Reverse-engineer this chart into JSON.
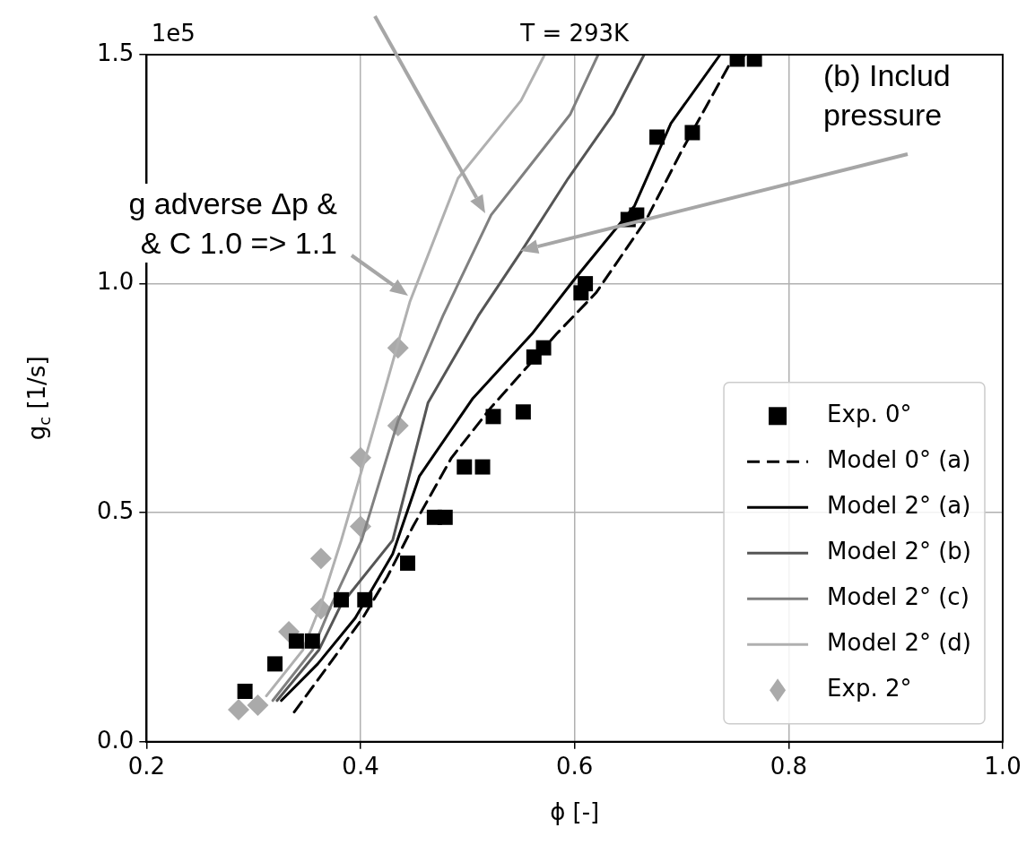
{
  "chart_data": {
    "type": "line",
    "title": "T = 293K",
    "xlabel": "ϕ [-]",
    "ylabel": "g$_{c}$ [1/s]",
    "xlim": [
      0.2,
      1.0
    ],
    "ylim": [
      0,
      1.5
    ],
    "xticks": [
      {
        "value": 0.2,
        "label": "0.2"
      },
      {
        "value": 0.4,
        "label": "0.4"
      },
      {
        "value": 0.6,
        "label": "0.6"
      },
      {
        "value": 0.8,
        "label": "0.8"
      },
      {
        "value": 1.0,
        "label": "1.0"
      }
    ],
    "yticks": [
      {
        "value": 0,
        "label": "0.0"
      },
      {
        "value": 0.5,
        "label": "0.5"
      },
      {
        "value": 1.0,
        "label": "1.0"
      },
      {
        "value": 1.5,
        "label": "1.5"
      }
    ],
    "grid": true,
    "legend": "bottom right",
    "annotations": [
      "1e5",
      "(b) Includ\npressure",
      "g adverse Δp &\n& C 1.0 => 1.1"
    ],
    "series": [
      {
        "name": "Exp. 0°",
        "type": "scatter",
        "marker": "square",
        "color": "#000000",
        "x": [
          0.292,
          0.32,
          0.34,
          0.355,
          0.382,
          0.404,
          0.444,
          0.469,
          0.479,
          0.497,
          0.514,
          0.524,
          0.552,
          0.562,
          0.571,
          0.606,
          0.61,
          0.65,
          0.658,
          0.677,
          0.71,
          0.752,
          0.768
        ],
        "values": [
          0.11,
          0.17,
          0.22,
          0.22,
          0.31,
          0.31,
          0.39,
          0.49,
          0.49,
          0.6,
          0.6,
          0.71,
          0.72,
          0.84,
          0.86,
          0.98,
          1.0,
          1.14,
          1.15,
          1.32,
          1.33,
          1.49,
          1.49
        ]
      },
      {
        "name": "Model 0° (a)",
        "type": "line",
        "line_style": "dashed",
        "color": "#000000",
        "x": [
          0.338,
          0.371,
          0.402,
          0.425,
          0.449,
          0.485,
          0.522,
          0.583,
          0.62,
          0.667,
          0.7,
          0.745,
          0.76
        ],
        "values": [
          0.065,
          0.17,
          0.27,
          0.36,
          0.47,
          0.62,
          0.73,
          0.89,
          0.98,
          1.14,
          1.29,
          1.48,
          1.5
        ]
      },
      {
        "name": "Model 2° (a)",
        "type": "line",
        "line_style": "solid",
        "color": "#000000",
        "x": [
          0.326,
          0.36,
          0.395,
          0.43,
          0.455,
          0.505,
          0.56,
          0.6,
          0.656,
          0.69,
          0.736
        ],
        "values": [
          0.09,
          0.17,
          0.27,
          0.41,
          0.58,
          0.75,
          0.89,
          1.01,
          1.17,
          1.35,
          1.5
        ]
      },
      {
        "name": "Model 2° (b)",
        "type": "line",
        "line_style": "solid",
        "color": "#555555",
        "x": [
          0.322,
          0.361,
          0.382,
          0.43,
          0.463,
          0.51,
          0.55,
          0.594,
          0.636,
          0.665
        ],
        "values": [
          0.09,
          0.2,
          0.3,
          0.44,
          0.74,
          0.93,
          1.07,
          1.23,
          1.37,
          1.5
        ]
      },
      {
        "name": "Model 2° (c)",
        "type": "line",
        "line_style": "solid",
        "color": "#808080",
        "x": [
          0.318,
          0.355,
          0.373,
          0.401,
          0.435,
          0.477,
          0.522,
          0.549,
          0.596,
          0.622
        ],
        "values": [
          0.09,
          0.2,
          0.3,
          0.44,
          0.7,
          0.93,
          1.15,
          1.23,
          1.37,
          1.5
        ]
      },
      {
        "name": "Model 2° (d)",
        "type": "line",
        "line_style": "solid",
        "color": "#b0b0b0",
        "x": [
          0.312,
          0.346,
          0.363,
          0.382,
          0.407,
          0.435,
          0.446,
          0.491,
          0.55,
          0.572
        ],
        "values": [
          0.1,
          0.2,
          0.3,
          0.44,
          0.64,
          0.87,
          0.96,
          1.23,
          1.4,
          1.5
        ]
      },
      {
        "name": "Exp. 2°",
        "type": "scatter",
        "marker": "diamond",
        "color": "#aaaaaa",
        "x": [
          0.286,
          0.304,
          0.333,
          0.363,
          0.363,
          0.4,
          0.4,
          0.435,
          0.435
        ],
        "values": [
          0.07,
          0.08,
          0.24,
          0.29,
          0.4,
          0.47,
          0.62,
          0.69,
          0.86
        ]
      }
    ]
  }
}
